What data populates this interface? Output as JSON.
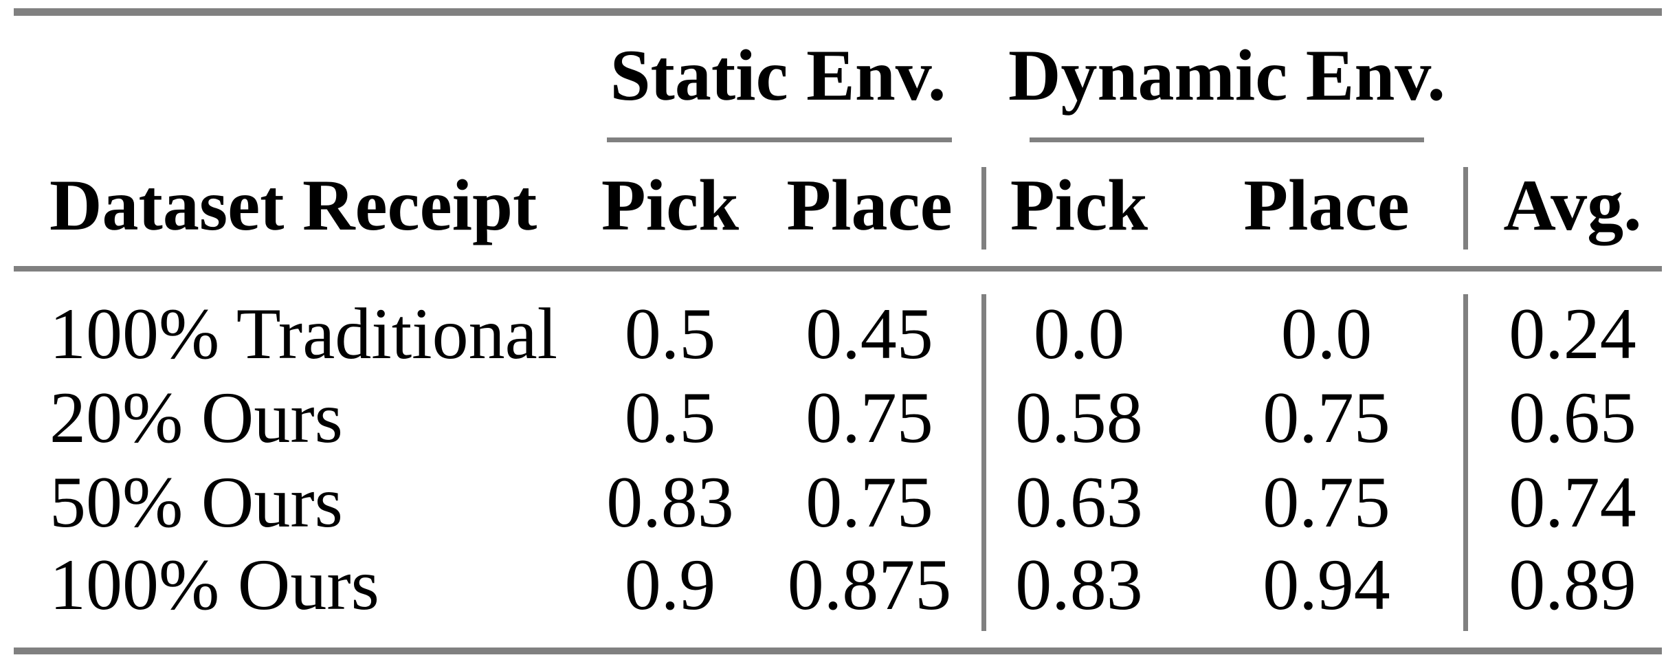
{
  "colors": {
    "rule": "#808080",
    "text": "#000000",
    "background": "#ffffff"
  },
  "table": {
    "column_groups": [
      {
        "label": "Static Env."
      },
      {
        "label": "Dynamic Env."
      }
    ],
    "headers": {
      "row_label": "Dataset Receipt",
      "static_pick": "Pick",
      "static_place": "Place",
      "dynamic_pick": "Pick",
      "dynamic_place": "Place",
      "avg": "Avg."
    },
    "rows": [
      {
        "label": "100% Traditional",
        "static_pick": "0.5",
        "static_place": "0.45",
        "dynamic_pick": "0.0",
        "dynamic_place": "0.0",
        "avg": "0.24"
      },
      {
        "label": "20% Ours",
        "static_pick": "0.5",
        "static_place": "0.75",
        "dynamic_pick": "0.58",
        "dynamic_place": "0.75",
        "avg": "0.65"
      },
      {
        "label": "50% Ours",
        "static_pick": "0.83",
        "static_place": "0.75",
        "dynamic_pick": "0.63",
        "dynamic_place": "0.75",
        "avg": "0.74"
      },
      {
        "label": "100% Ours",
        "static_pick": "0.9",
        "static_place": "0.875",
        "dynamic_pick": "0.83",
        "dynamic_place": "0.94",
        "avg": "0.89"
      }
    ]
  }
}
